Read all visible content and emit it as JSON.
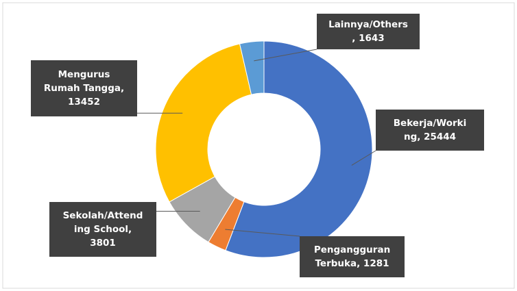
{
  "chart_data": {
    "type": "donut",
    "categories": [
      "Bekerja/Working",
      "Pengangguran Terbuka",
      "Sekolah/Attending School",
      "Mengurus Rumah Tangga",
      "Lainnya/Others"
    ],
    "values": [
      25444,
      1281,
      3801,
      13452,
      1643
    ],
    "value_labels": [
      "Bekerja/Working, 25444",
      "Pengangguran Terbuka, 1281",
      "Sekolah/Attending School, 3801",
      "Mengurus Rumah Tangga, 13452",
      "Lainnya/Others, 1643"
    ],
    "colors": [
      "#4472c4",
      "#ed7d31",
      "#a5a5a5",
      "#ffc000",
      "#5b9bd5"
    ]
  }
}
